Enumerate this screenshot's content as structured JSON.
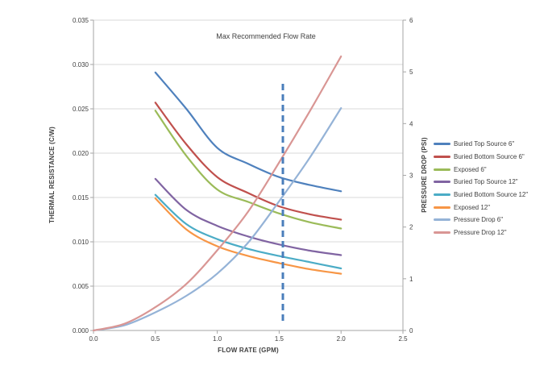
{
  "chart_data": {
    "type": "line",
    "annotation": "Max Recommended Flow Rate",
    "xlabel": "FLOW RATE (GPM)",
    "ylabel_left": "THERMAL RESISTANCE (C/W)",
    "ylabel_right": "PRESSURE DROP (PSI)",
    "xlim": [
      0,
      2.5
    ],
    "ylim_left": [
      0,
      0.035
    ],
    "ylim_right": [
      0,
      6
    ],
    "x_ticks": [
      "0.0",
      "0.5",
      "1.0",
      "1.5",
      "2.0",
      "2.5"
    ],
    "y_left_ticks": [
      "0.000",
      "0.005",
      "0.010",
      "0.015",
      "0.020",
      "0.025",
      "0.030",
      "0.035"
    ],
    "y_right_ticks": [
      "0",
      "1",
      "2",
      "3",
      "4",
      "5",
      "6"
    ],
    "grid": true,
    "legend_position": "right",
    "max_flow_line": {
      "x": 1.53,
      "value_gpm": 1.5,
      "color": "#4A7EBB",
      "style": "dashed"
    },
    "series": [
      {
        "name": "Buried Top Source 6\"",
        "color": "#4F81BD",
        "axis": "left",
        "x": [
          0.5,
          0.75,
          1.0,
          1.25,
          1.5,
          1.75,
          2.0
        ],
        "y": [
          0.0291,
          0.025,
          0.0206,
          0.0188,
          0.0173,
          0.0164,
          0.0157
        ]
      },
      {
        "name": "Buried Bottom Source 6\"",
        "color": "#C0504D",
        "axis": "left",
        "x": [
          0.5,
          0.75,
          1.0,
          1.25,
          1.5,
          1.75,
          2.0
        ],
        "y": [
          0.0257,
          0.021,
          0.0173,
          0.0155,
          0.014,
          0.0131,
          0.0125
        ]
      },
      {
        "name": "Exposed 6\"",
        "color": "#9BBB59",
        "axis": "left",
        "x": [
          0.5,
          0.75,
          1.0,
          1.25,
          1.5,
          1.75,
          2.0
        ],
        "y": [
          0.0248,
          0.0197,
          0.0159,
          0.0145,
          0.0132,
          0.0122,
          0.0115
        ]
      },
      {
        "name": "Buried Top Source 12\"",
        "color": "#8064A2",
        "axis": "left",
        "x": [
          0.5,
          0.75,
          1.0,
          1.25,
          1.5,
          1.75,
          2.0
        ],
        "y": [
          0.0171,
          0.0136,
          0.0118,
          0.0106,
          0.0097,
          0.009,
          0.0085
        ]
      },
      {
        "name": "Buried Bottom Source 12\"",
        "color": "#4BACC6",
        "axis": "left",
        "x": [
          0.5,
          0.75,
          1.0,
          1.25,
          1.5,
          1.75,
          2.0
        ],
        "y": [
          0.0153,
          0.012,
          0.0103,
          0.0092,
          0.0084,
          0.0077,
          0.007
        ]
      },
      {
        "name": "Exposed 12\"",
        "color": "#F79646",
        "axis": "left",
        "x": [
          0.5,
          0.75,
          1.0,
          1.25,
          1.5,
          1.75,
          2.0
        ],
        "y": [
          0.0149,
          0.0114,
          0.0095,
          0.0084,
          0.0076,
          0.0069,
          0.0064
        ]
      },
      {
        "name": "Pressure Drop 6\"",
        "color": "#95B3D7",
        "axis": "right",
        "x": [
          0,
          0.25,
          0.5,
          0.75,
          1.0,
          1.25,
          1.5,
          1.75,
          2.0
        ],
        "y": [
          0,
          0.1,
          0.35,
          0.67,
          1.1,
          1.7,
          2.5,
          3.35,
          4.3
        ]
      },
      {
        "name": "Pressure Drop 12\"",
        "color": "#D99694",
        "axis": "right",
        "x": [
          0,
          0.25,
          0.5,
          0.75,
          1.0,
          1.25,
          1.5,
          1.75,
          2.0
        ],
        "y": [
          0,
          0.13,
          0.45,
          0.9,
          1.55,
          2.3,
          3.25,
          4.25,
          5.3
        ]
      }
    ],
    "colors": {
      "gridline": "#D9D9D9",
      "axis_line": "#A6A6A6",
      "text": "#404040"
    }
  }
}
